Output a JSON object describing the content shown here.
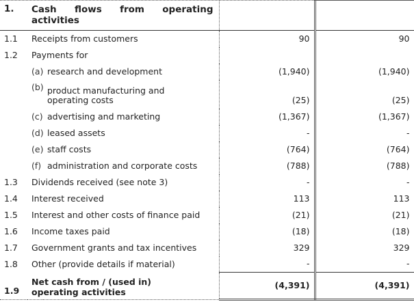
{
  "section": {
    "number": "1.",
    "title": "Cash flows from operating activities"
  },
  "rows": [
    {
      "num": "1.1",
      "sub": "",
      "desc": "Receipts from customers",
      "v1": "90",
      "v2": "90"
    },
    {
      "num": "1.2",
      "sub": "",
      "desc": "Payments for",
      "v1": "",
      "v2": ""
    },
    {
      "num": "",
      "sub": "(a)",
      "desc": "research and development",
      "v1": "(1,940)",
      "v2": "(1,940)"
    },
    {
      "num": "",
      "sub": "(b)",
      "desc": "product manufacturing and operating costs",
      "v1": "(25)",
      "v2": "(25)"
    },
    {
      "num": "",
      "sub": "(c)",
      "desc": "advertising and marketing",
      "v1": "(1,367)",
      "v2": "(1,367)"
    },
    {
      "num": "",
      "sub": "(d)",
      "desc": "leased assets",
      "v1": "-",
      "v2": "-"
    },
    {
      "num": "",
      "sub": "(e)",
      "desc": "staff costs",
      "v1": "(764)",
      "v2": "(764)"
    },
    {
      "num": "",
      "sub": "(f)",
      "desc": "administration and corporate costs",
      "v1": "(788)",
      "v2": "(788)"
    },
    {
      "num": "1.3",
      "sub": "",
      "desc": "Dividends received (see note 3)",
      "v1": "-",
      "v2": "-"
    },
    {
      "num": "1.4",
      "sub": "",
      "desc": "Interest received",
      "v1": "113",
      "v2": "113"
    },
    {
      "num": "1.5",
      "sub": "",
      "desc": "Interest and other costs of finance paid",
      "v1": "(21)",
      "v2": "(21)"
    },
    {
      "num": "1.6",
      "sub": "",
      "desc": "Income taxes paid",
      "v1": "(18)",
      "v2": "(18)"
    },
    {
      "num": "1.7",
      "sub": "",
      "desc": "Government grants and tax incentives",
      "v1": "329",
      "v2": "329"
    },
    {
      "num": "1.8",
      "sub": "",
      "desc": "Other (provide details if material)",
      "v1": "-",
      "v2": "-"
    }
  ],
  "total": {
    "num": "1.9",
    "desc": "Net cash from / (used in) operating activities",
    "v1": "(4,391)",
    "v2": "(4,391)"
  }
}
